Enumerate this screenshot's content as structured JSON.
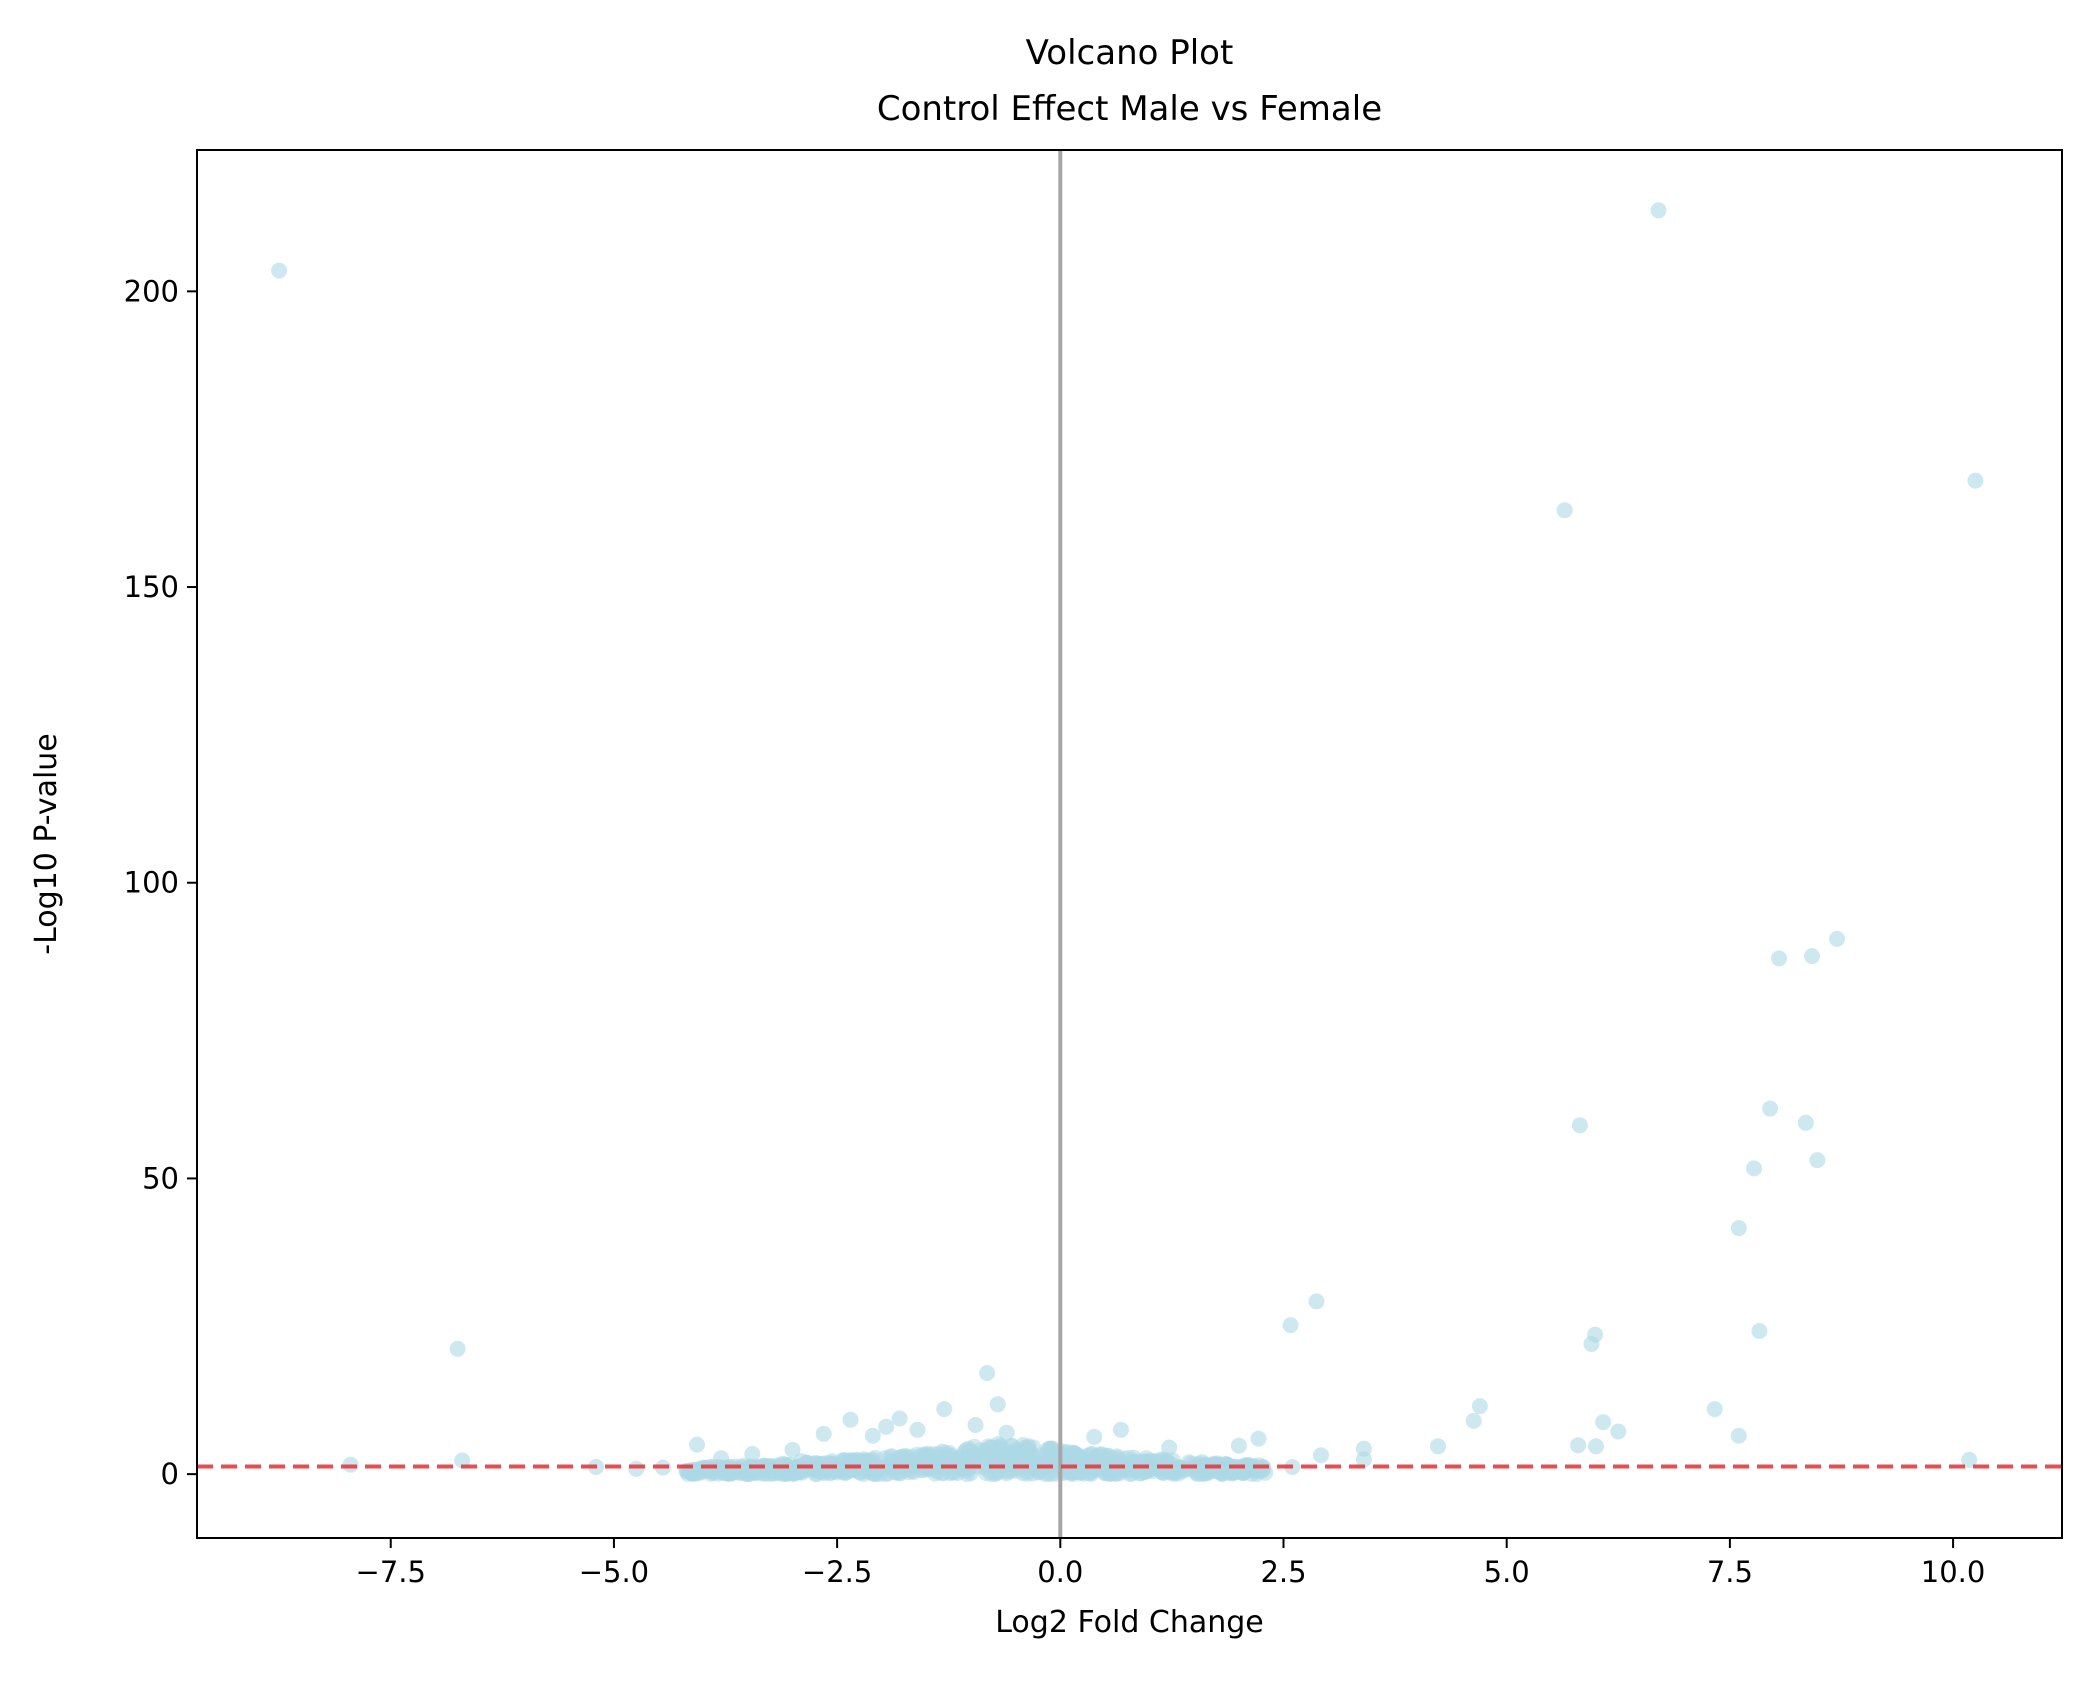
{
  "chart_data": {
    "type": "scatter",
    "title": "Volcano Plot",
    "subtitle": "Control Effect Male vs Female",
    "xlabel": "Log2 Fold Change",
    "ylabel": "-Log10 P-value",
    "xlim": [
      -9.67,
      11.22
    ],
    "ylim": [
      -10.8,
      223.9
    ],
    "xticks": [
      -7.5,
      -5.0,
      -2.5,
      0.0,
      2.5,
      5.0,
      7.5,
      10.0
    ],
    "xtick_labels": [
      "−7.5",
      "−5.0",
      "−2.5",
      "0.0",
      "2.5",
      "5.0",
      "7.5",
      "10.0"
    ],
    "yticks": [
      0,
      50,
      100,
      150,
      200
    ],
    "ytick_labels": [
      "0",
      "50",
      "100",
      "150",
      "200"
    ],
    "grid": false,
    "legend": false,
    "point_color": "#add8e6",
    "threshold_hline": {
      "y": 1.3,
      "color": "#e8393d",
      "style": "dashed"
    },
    "vline": {
      "x": 0,
      "color": "#a6a6a6"
    },
    "points": [
      [
        -8.75,
        203.5
      ],
      [
        6.7,
        213.7
      ],
      [
        10.25,
        168.0
      ],
      [
        5.65,
        163.0
      ],
      [
        8.7,
        90.5
      ],
      [
        8.05,
        87.2
      ],
      [
        8.42,
        87.6
      ],
      [
        7.95,
        61.8
      ],
      [
        8.35,
        59.4
      ],
      [
        5.82,
        59.0
      ],
      [
        8.48,
        53.1
      ],
      [
        7.77,
        51.7
      ],
      [
        7.6,
        41.6
      ],
      [
        2.87,
        29.2
      ],
      [
        2.58,
        25.2
      ],
      [
        7.83,
        24.2
      ],
      [
        5.99,
        23.6
      ],
      [
        5.95,
        22.0
      ],
      [
        -6.75,
        21.2
      ],
      [
        -0.82,
        17.1
      ],
      [
        -0.7,
        11.8
      ],
      [
        4.7,
        11.5
      ],
      [
        7.33,
        11.0
      ],
      [
        -1.3,
        11.0
      ],
      [
        -2.35,
        9.2
      ],
      [
        -1.8,
        9.4
      ],
      [
        4.63,
        9.0
      ],
      [
        6.08,
        8.8
      ],
      [
        -0.95,
        8.3
      ],
      [
        -1.95,
        8.0
      ],
      [
        -1.6,
        7.5
      ],
      [
        0.68,
        7.5
      ],
      [
        6.25,
        7.2
      ],
      [
        -2.65,
        6.8
      ],
      [
        -2.1,
        6.5
      ],
      [
        7.6,
        6.5
      ],
      [
        2.22,
        6.0
      ],
      [
        0.38,
        6.3
      ],
      [
        -0.6,
        7.0
      ],
      [
        -4.07,
        5.0
      ],
      [
        1.22,
        4.5
      ],
      [
        2.0,
        4.8
      ],
      [
        3.4,
        4.3
      ],
      [
        4.23,
        4.7
      ],
      [
        5.8,
        4.9
      ],
      [
        6.0,
        4.7
      ],
      [
        -3.45,
        3.4
      ],
      [
        -3.0,
        4.1
      ],
      [
        2.92,
        3.2
      ],
      [
        3.4,
        2.5
      ],
      [
        -3.8,
        2.7
      ],
      [
        -6.7,
        2.3
      ],
      [
        -7.95,
        1.6
      ],
      [
        -5.2,
        1.2
      ],
      [
        -4.75,
        0.9
      ],
      [
        -4.45,
        1.1
      ],
      [
        10.18,
        2.4
      ],
      [
        2.6,
        1.2
      ],
      [
        -2.9,
        2.2
      ]
    ],
    "dense_cluster": {
      "description_x_range": [
        -4.2,
        2.3
      ],
      "y_max_at_center": 5.5
    }
  }
}
